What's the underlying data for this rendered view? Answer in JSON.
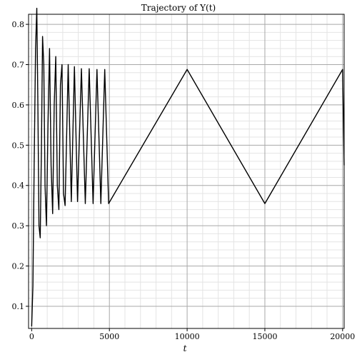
{
  "chart_data": {
    "type": "line",
    "title": "Trajectory of  Y(t)",
    "xlabel": "t",
    "ylabel": "",
    "xlim": [
      -200,
      20100
    ],
    "ylim": [
      0.045,
      0.825
    ],
    "xticks": [
      0,
      5000,
      10000,
      15000,
      20000
    ],
    "xtick_labels": [
      "0",
      "5000",
      "10000",
      "15000",
      "20000"
    ],
    "yticks": [
      0.1,
      0.2,
      0.3,
      0.4,
      0.5,
      0.6,
      0.7,
      0.8
    ],
    "ytick_labels": [
      "0.1",
      "0.2",
      "0.3",
      "0.4",
      "0.5",
      "0.6",
      "0.7",
      "0.8"
    ],
    "grid": true,
    "line_color": "#000000",
    "series": [
      {
        "points": [
          [
            0,
            0.05
          ],
          [
            80,
            0.15
          ],
          [
            160,
            0.45
          ],
          [
            250,
            0.74
          ],
          [
            330,
            0.84
          ],
          [
            400,
            0.6
          ],
          [
            470,
            0.3
          ],
          [
            550,
            0.27
          ],
          [
            630,
            0.5
          ],
          [
            700,
            0.77
          ],
          [
            780,
            0.7
          ],
          [
            860,
            0.4
          ],
          [
            950,
            0.3
          ],
          [
            1050,
            0.55
          ],
          [
            1150,
            0.74
          ],
          [
            1250,
            0.45
          ],
          [
            1350,
            0.33
          ],
          [
            1450,
            0.6
          ],
          [
            1550,
            0.72
          ],
          [
            1650,
            0.4
          ],
          [
            1750,
            0.34
          ],
          [
            1850,
            0.65
          ],
          [
            1950,
            0.7
          ],
          [
            2050,
            0.38
          ],
          [
            2150,
            0.35
          ],
          [
            2350,
            0.7
          ],
          [
            2550,
            0.36
          ],
          [
            2750,
            0.695
          ],
          [
            2950,
            0.36
          ],
          [
            3200,
            0.69
          ],
          [
            3450,
            0.355
          ],
          [
            3700,
            0.69
          ],
          [
            3950,
            0.355
          ],
          [
            4200,
            0.688
          ],
          [
            4450,
            0.355
          ],
          [
            4700,
            0.688
          ],
          [
            4950,
            0.355
          ],
          [
            10000,
            0.688
          ],
          [
            15000,
            0.355
          ],
          [
            20000,
            0.688
          ],
          [
            20100,
            0.45
          ]
        ]
      }
    ]
  }
}
